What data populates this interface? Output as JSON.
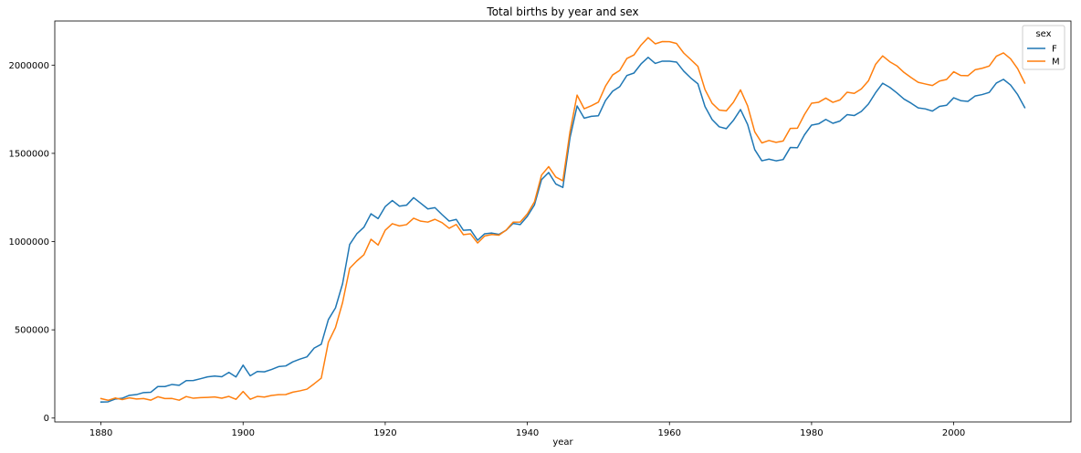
{
  "chart_data": {
    "type": "line",
    "title": "Total births by year and sex",
    "xlabel": "year",
    "ylabel": "",
    "xlim": [
      1873.5,
      2016.5
    ],
    "ylim": [
      -22000,
      2250000
    ],
    "x_ticks": [
      1880,
      1900,
      1920,
      1940,
      1960,
      1980,
      2000
    ],
    "y_ticks": [
      0,
      500000,
      1000000,
      1500000,
      2000000
    ],
    "x_tick_labels": [
      "1880",
      "1900",
      "1920",
      "1940",
      "1960",
      "1980",
      "2000"
    ],
    "y_tick_labels": [
      "0",
      "500000",
      "1000000",
      "1500000",
      "2000000"
    ],
    "grid": false,
    "legend": {
      "title": "sex",
      "placement": "top-right"
    },
    "series": [
      {
        "name": "F",
        "color": "#1f77b4",
        "points": [
          [
            1880,
            90992
          ],
          [
            1881,
            91955
          ],
          [
            1882,
            107851
          ],
          [
            1883,
            112322
          ],
          [
            1884,
            129021
          ],
          [
            1885,
            133056
          ],
          [
            1886,
            144538
          ],
          [
            1887,
            145982
          ],
          [
            1888,
            178627
          ],
          [
            1889,
            178366
          ],
          [
            1890,
            190377
          ],
          [
            1891,
            185482
          ],
          [
            1892,
            212350
          ],
          [
            1893,
            212906
          ],
          [
            1894,
            222926
          ],
          [
            1895,
            233630
          ],
          [
            1896,
            237920
          ],
          [
            1897,
            234199
          ],
          [
            1898,
            258772
          ],
          [
            1899,
            233023
          ],
          [
            1900,
            299810
          ],
          [
            1901,
            239349
          ],
          [
            1902,
            264079
          ],
          [
            1903,
            261976
          ],
          [
            1904,
            275375
          ],
          [
            1905,
            291641
          ],
          [
            1906,
            295301
          ],
          [
            1907,
            318556
          ],
          [
            1908,
            334277
          ],
          [
            1909,
            347191
          ],
          [
            1910,
            396416
          ],
          [
            1911,
            418180
          ],
          [
            1912,
            557939
          ],
          [
            1913,
            624317
          ],
          [
            1914,
            761376
          ],
          [
            1915,
            983824
          ],
          [
            1916,
            1044249
          ],
          [
            1917,
            1081194
          ],
          [
            1918,
            1157585
          ],
          [
            1919,
            1130149
          ],
          [
            1920,
            1198214
          ],
          [
            1921,
            1232845
          ],
          [
            1922,
            1200796
          ],
          [
            1923,
            1206239
          ],
          [
            1924,
            1248821
          ],
          [
            1925,
            1217217
          ],
          [
            1926,
            1185078
          ],
          [
            1927,
            1192207
          ],
          [
            1928,
            1152836
          ],
          [
            1929,
            1116284
          ],
          [
            1930,
            1125521
          ],
          [
            1931,
            1064233
          ],
          [
            1932,
            1066930
          ],
          [
            1933,
            1007523
          ],
          [
            1934,
            1044249
          ],
          [
            1935,
            1048395
          ],
          [
            1936,
            1040892
          ],
          [
            1937,
            1063945
          ],
          [
            1938,
            1103258
          ],
          [
            1939,
            1096371
          ],
          [
            1940,
            1143261
          ],
          [
            1941,
            1208004
          ],
          [
            1942,
            1350981
          ],
          [
            1943,
            1391734
          ],
          [
            1944,
            1326747
          ],
          [
            1945,
            1307215
          ],
          [
            1946,
            1587745
          ],
          [
            1947,
            1768640
          ],
          [
            1948,
            1699284
          ],
          [
            1949,
            1709810
          ],
          [
            1950,
            1713259
          ],
          [
            1951,
            1799495
          ],
          [
            1952,
            1852089
          ],
          [
            1953,
            1878014
          ],
          [
            1954,
            1940925
          ],
          [
            1955,
            1954983
          ],
          [
            1956,
            2006866
          ],
          [
            1957,
            2043869
          ],
          [
            1958,
            2009638
          ],
          [
            1959,
            2022513
          ],
          [
            1960,
            2022302
          ],
          [
            1961,
            2017364
          ],
          [
            1962,
            1966483
          ],
          [
            1963,
            1927080
          ],
          [
            1964,
            1894193
          ],
          [
            1965,
            1765292
          ],
          [
            1966,
            1691868
          ],
          [
            1967,
            1650764
          ],
          [
            1968,
            1640034
          ],
          [
            1969,
            1686947
          ],
          [
            1970,
            1748174
          ],
          [
            1971,
            1663420
          ],
          [
            1972,
            1521085
          ],
          [
            1973,
            1457908
          ],
          [
            1974,
            1467393
          ],
          [
            1975,
            1457756
          ],
          [
            1976,
            1464930
          ],
          [
            1977,
            1532893
          ],
          [
            1978,
            1531592
          ],
          [
            1979,
            1605057
          ],
          [
            1980,
            1660107
          ],
          [
            1981,
            1667507
          ],
          [
            1982,
            1692341
          ],
          [
            1983,
            1670356
          ],
          [
            1984,
            1683346
          ],
          [
            1985,
            1719488
          ],
          [
            1986,
            1714090
          ],
          [
            1987,
            1737539
          ],
          [
            1988,
            1779555
          ],
          [
            1989,
            1843277
          ],
          [
            1990,
            1897256
          ],
          [
            1991,
            1874110
          ],
          [
            1992,
            1842818
          ],
          [
            1993,
            1807795
          ],
          [
            1994,
            1784396
          ],
          [
            1995,
            1757806
          ],
          [
            1996,
            1752194
          ],
          [
            1997,
            1739726
          ],
          [
            1998,
            1765825
          ],
          [
            1999,
            1772632
          ],
          [
            2000,
            1814922
          ],
          [
            2001,
            1798567
          ],
          [
            2002,
            1794710
          ],
          [
            2003,
            1824718
          ],
          [
            2004,
            1833005
          ],
          [
            2005,
            1845379
          ],
          [
            2006,
            1898463
          ],
          [
            2007,
            1919408
          ],
          [
            2008,
            1887234
          ],
          [
            2009,
            1832925
          ],
          [
            2010,
            1759010
          ]
        ]
      },
      {
        "name": "M",
        "color": "#ff7f0e",
        "points": [
          [
            1880,
            110491
          ],
          [
            1881,
            100745
          ],
          [
            1882,
            113688
          ],
          [
            1883,
            104629
          ],
          [
            1884,
            114445
          ],
          [
            1885,
            107800
          ],
          [
            1886,
            110785
          ],
          [
            1887,
            101412
          ],
          [
            1888,
            120851
          ],
          [
            1889,
            110584
          ],
          [
            1890,
            111025
          ],
          [
            1891,
            101196
          ],
          [
            1892,
            122037
          ],
          [
            1893,
            112319
          ],
          [
            1894,
            115775
          ],
          [
            1895,
            117398
          ],
          [
            1896,
            119575
          ],
          [
            1897,
            112760
          ],
          [
            1898,
            122703
          ],
          [
            1899,
            106218
          ],
          [
            1900,
            150499
          ],
          [
            1901,
            106471
          ],
          [
            1902,
            122660
          ],
          [
            1903,
            119233
          ],
          [
            1904,
            128129
          ],
          [
            1905,
            132319
          ],
          [
            1906,
            133159
          ],
          [
            1907,
            146838
          ],
          [
            1908,
            154339
          ],
          [
            1909,
            163983
          ],
          [
            1910,
            194209
          ],
          [
            1911,
            225964
          ],
          [
            1912,
            429926
          ],
          [
            1913,
            512482
          ],
          [
            1914,
            654746
          ],
          [
            1915,
            848647
          ],
          [
            1916,
            890142
          ],
          [
            1917,
            925623
          ],
          [
            1918,
            1013154
          ],
          [
            1919,
            980215
          ],
          [
            1920,
            1064468
          ],
          [
            1921,
            1101374
          ],
          [
            1922,
            1088648
          ],
          [
            1923,
            1096227
          ],
          [
            1924,
            1132671
          ],
          [
            1925,
            1115798
          ],
          [
            1926,
            1110440
          ],
          [
            1927,
            1126259
          ],
          [
            1928,
            1107113
          ],
          [
            1929,
            1075338
          ],
          [
            1930,
            1097207
          ],
          [
            1931,
            1039045
          ],
          [
            1932,
            1044002
          ],
          [
            1933,
            992150
          ],
          [
            1934,
            1031954
          ],
          [
            1935,
            1040102
          ],
          [
            1936,
            1036248
          ],
          [
            1937,
            1064468
          ],
          [
            1938,
            1109817
          ],
          [
            1939,
            1111069
          ],
          [
            1940,
            1156902
          ],
          [
            1941,
            1225095
          ],
          [
            1942,
            1376959
          ],
          [
            1943,
            1424736
          ],
          [
            1944,
            1366041
          ],
          [
            1945,
            1344786
          ],
          [
            1946,
            1621935
          ],
          [
            1947,
            1830004
          ],
          [
            1948,
            1752599
          ],
          [
            1949,
            1769722
          ],
          [
            1950,
            1790549
          ],
          [
            1951,
            1881080
          ],
          [
            1952,
            1944277
          ],
          [
            1953,
            1969777
          ],
          [
            1954,
            2037374
          ],
          [
            1955,
            2057732
          ],
          [
            1956,
            2113694
          ],
          [
            1957,
            2155866
          ],
          [
            1958,
            2120712
          ],
          [
            1959,
            2133538
          ],
          [
            1960,
            2132717
          ],
          [
            1961,
            2122502
          ],
          [
            1962,
            2068883
          ],
          [
            1963,
            2031303
          ],
          [
            1964,
            1993190
          ],
          [
            1965,
            1861636
          ],
          [
            1966,
            1783933
          ],
          [
            1967,
            1745470
          ],
          [
            1968,
            1741066
          ],
          [
            1969,
            1789606
          ],
          [
            1970,
            1859594
          ],
          [
            1971,
            1768812
          ],
          [
            1972,
            1622113
          ],
          [
            1973,
            1559040
          ],
          [
            1974,
            1573104
          ],
          [
            1975,
            1562207
          ],
          [
            1976,
            1569904
          ],
          [
            1977,
            1640958
          ],
          [
            1978,
            1642253
          ],
          [
            1979,
            1720050
          ],
          [
            1980,
            1784139
          ],
          [
            1981,
            1789651
          ],
          [
            1982,
            1813001
          ],
          [
            1983,
            1789155
          ],
          [
            1984,
            1802901
          ],
          [
            1985,
            1846572
          ],
          [
            1986,
            1839812
          ],
          [
            1987,
            1865284
          ],
          [
            1988,
            1910914
          ],
          [
            1989,
            2003941
          ],
          [
            1990,
            2052369
          ],
          [
            1991,
            2019236
          ],
          [
            1992,
            1995925
          ],
          [
            1993,
            1958755
          ],
          [
            1994,
            1929891
          ],
          [
            1995,
            1902598
          ],
          [
            1996,
            1893250
          ],
          [
            1997,
            1884399
          ],
          [
            1998,
            1909925
          ],
          [
            1999,
            1918700
          ],
          [
            2000,
            1962406
          ],
          [
            2001,
            1941251
          ],
          [
            2002,
            1939815
          ],
          [
            2003,
            1973677
          ],
          [
            2004,
            1982200
          ],
          [
            2005,
            1994841
          ],
          [
            2006,
            2050234
          ],
          [
            2007,
            2069242
          ],
          [
            2008,
            2036289
          ],
          [
            2009,
            1979303
          ],
          [
            2010,
            1898382
          ]
        ]
      }
    ]
  }
}
